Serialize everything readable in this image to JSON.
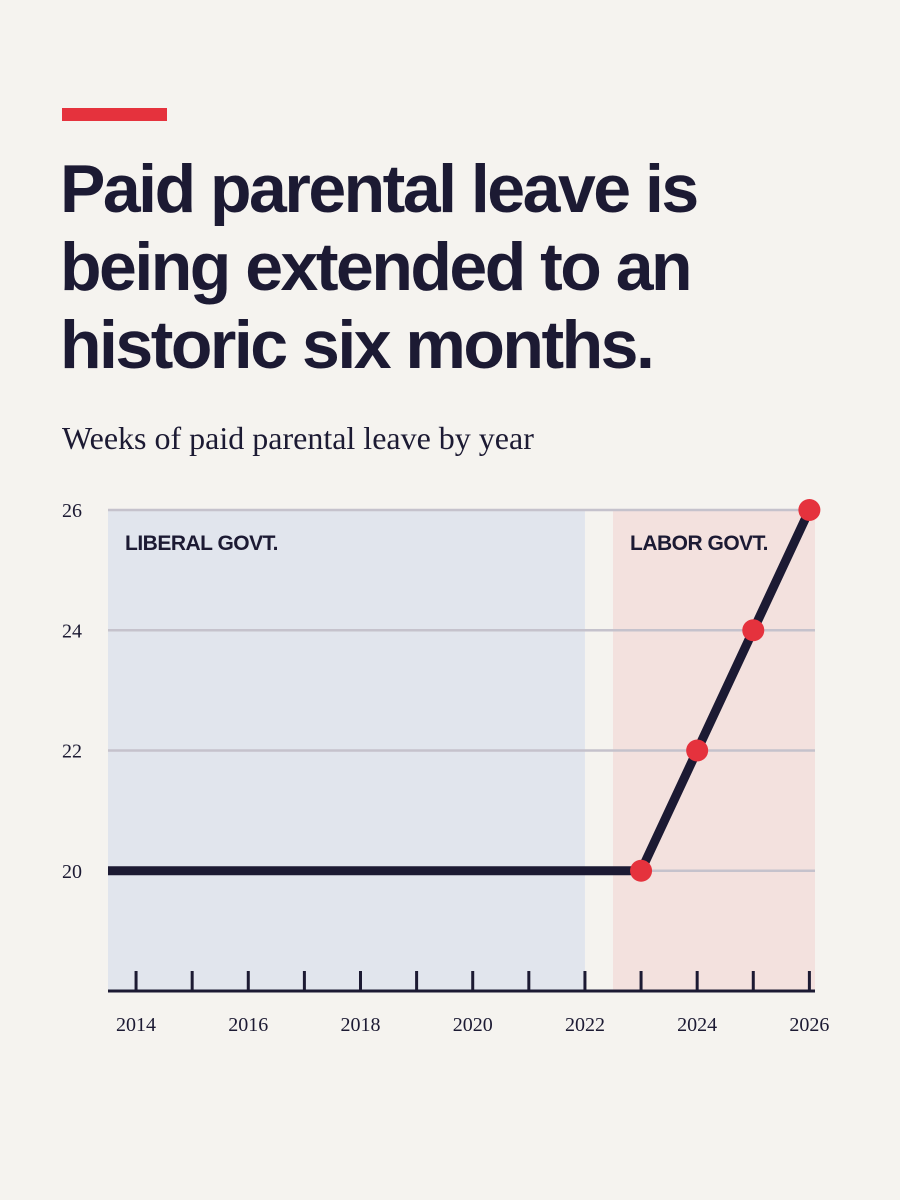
{
  "headline": {
    "lines": [
      "Paid parental leave is",
      "being extended to an",
      "historic six months."
    ]
  },
  "colors": {
    "background": "#f5f3ef",
    "accent": "#e5323d",
    "ink": "#1c1a33",
    "liberal_band": "#e1e5ed",
    "labor_band": "#f3e1de",
    "gridline": "#c5c2cc"
  },
  "chart_data": {
    "type": "line",
    "title": "Weeks of paid parental leave by year",
    "xlabel": "",
    "ylabel": "",
    "xlim": [
      2013.5,
      2026.1
    ],
    "ylim": [
      18,
      26
    ],
    "x_ticks": [
      2014,
      2015,
      2016,
      2017,
      2018,
      2019,
      2020,
      2021,
      2022,
      2023,
      2024,
      2025,
      2026
    ],
    "x_tick_labels": [
      2014,
      2016,
      2018,
      2020,
      2022,
      2024,
      2026
    ],
    "y_ticks": [
      20,
      22,
      24,
      26
    ],
    "grid": "horizontal",
    "regions": [
      {
        "label": "LIBERAL GOVT.",
        "x_start": 2013.5,
        "x_end": 2022
      },
      {
        "label": "LABOR GOVT.",
        "x_start": 2022.5,
        "x_end": 2026.1
      }
    ],
    "series": [
      {
        "x": [
          2013.5,
          2023,
          2024,
          2025,
          2026
        ],
        "values": [
          20,
          20,
          22,
          24,
          26
        ],
        "markers": [
          false,
          true,
          true,
          true,
          true
        ]
      }
    ]
  }
}
